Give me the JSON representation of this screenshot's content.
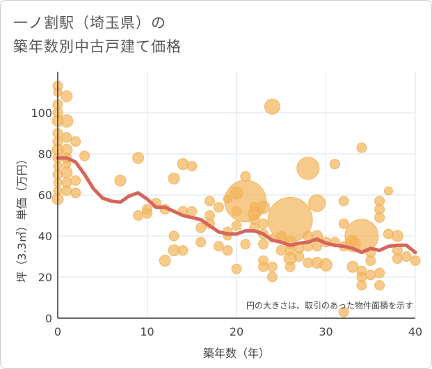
{
  "title_line1": "一ノ割駅（埼玉県）の",
  "title_line2": "築年数別中古戸建て価格",
  "chart_data": {
    "type": "scatter",
    "title": "一ノ割駅（埼玉県）の築年数別中古戸建て価格",
    "xlabel": "築年数（年）",
    "ylabel": "坪（3.3㎡）単価（万円）",
    "xlim": [
      0,
      40
    ],
    "ylim": [
      0,
      120
    ],
    "xticks": [
      0,
      10,
      20,
      30,
      40
    ],
    "yticks": [
      0,
      20,
      40,
      60,
      80,
      100
    ],
    "grid": true,
    "annotation": "円の大きさは、取引のあった物件面積を示す",
    "colors": {
      "bubble": "#f2b35a",
      "line": "#d4675a",
      "grid": "#d7e3ee",
      "axis": "#333333"
    },
    "points": [
      [
        0,
        113,
        7
      ],
      [
        0,
        110,
        6
      ],
      [
        0,
        104,
        7
      ],
      [
        0,
        100,
        7
      ],
      [
        0,
        96,
        8
      ],
      [
        0,
        90,
        7
      ],
      [
        0,
        86,
        7
      ],
      [
        0,
        82,
        8
      ],
      [
        0,
        78,
        7
      ],
      [
        0,
        74,
        6
      ],
      [
        0,
        70,
        7
      ],
      [
        0,
        66,
        6
      ],
      [
        0,
        62,
        6
      ],
      [
        0,
        58,
        8
      ],
      [
        1,
        108,
        8
      ],
      [
        1,
        96,
        9
      ],
      [
        1,
        88,
        7
      ],
      [
        1,
        82,
        8
      ],
      [
        1,
        78,
        7
      ],
      [
        1,
        75,
        6
      ],
      [
        1,
        71,
        8
      ],
      [
        1,
        66,
        7
      ],
      [
        1,
        62,
        7
      ],
      [
        2,
        86,
        7
      ],
      [
        2,
        67,
        7
      ],
      [
        2,
        61,
        7
      ],
      [
        3,
        79,
        7
      ],
      [
        7,
        67,
        8
      ],
      [
        9,
        78,
        8
      ],
      [
        9,
        50,
        7
      ],
      [
        10,
        53,
        7
      ],
      [
        10,
        51,
        7
      ],
      [
        11,
        56,
        7
      ],
      [
        12,
        53,
        7
      ],
      [
        12,
        28,
        8
      ],
      [
        13,
        68,
        8
      ],
      [
        13,
        40,
        7
      ],
      [
        13,
        33,
        8
      ],
      [
        14,
        75,
        8
      ],
      [
        14,
        52,
        7
      ],
      [
        14,
        33,
        7
      ],
      [
        15,
        74,
        7
      ],
      [
        15,
        52,
        7
      ],
      [
        16,
        44,
        7
      ],
      [
        16,
        37,
        7
      ],
      [
        17,
        57,
        7
      ],
      [
        17,
        50,
        7
      ],
      [
        17,
        46,
        7
      ],
      [
        18,
        54,
        7
      ],
      [
        18,
        35,
        7
      ],
      [
        19,
        42,
        7
      ],
      [
        19,
        33,
        7
      ],
      [
        19,
        40,
        6
      ],
      [
        19,
        58,
        6
      ],
      [
        20,
        61,
        9
      ],
      [
        20,
        24,
        7
      ],
      [
        20,
        52,
        7
      ],
      [
        20,
        45,
        7
      ],
      [
        21,
        69,
        7
      ],
      [
        21,
        57,
        30
      ],
      [
        21,
        36,
        7
      ],
      [
        22,
        51,
        9
      ],
      [
        22,
        48,
        7
      ],
      [
        22,
        44,
        7
      ],
      [
        22,
        54,
        7
      ],
      [
        23,
        54,
        9
      ],
      [
        23,
        46,
        7
      ],
      [
        23,
        41,
        7
      ],
      [
        23,
        36,
        7
      ],
      [
        23,
        28,
        7
      ],
      [
        23,
        25,
        7
      ],
      [
        24,
        103,
        11
      ],
      [
        24,
        25,
        7
      ],
      [
        24,
        20,
        7
      ],
      [
        24,
        39,
        6
      ],
      [
        25,
        33,
        7
      ],
      [
        25,
        40,
        7
      ],
      [
        26,
        48,
        32
      ],
      [
        26,
        37,
        9
      ],
      [
        26,
        33,
        7
      ],
      [
        26,
        29,
        9
      ],
      [
        26,
        25,
        7
      ],
      [
        27,
        34,
        7
      ],
      [
        27,
        30,
        7
      ],
      [
        28,
        73,
        16
      ],
      [
        28,
        40,
        7
      ],
      [
        28,
        35,
        7
      ],
      [
        28,
        27,
        7
      ],
      [
        29,
        56,
        12
      ],
      [
        29,
        40,
        8
      ],
      [
        29,
        35,
        7
      ],
      [
        29,
        27,
        8
      ],
      [
        30,
        37,
        7
      ],
      [
        30,
        26,
        9
      ],
      [
        31,
        75,
        7
      ],
      [
        31,
        37,
        7
      ],
      [
        32,
        57,
        7
      ],
      [
        32,
        46,
        7
      ],
      [
        32,
        35,
        7
      ],
      [
        32,
        3,
        7
      ],
      [
        33,
        38,
        7
      ],
      [
        33,
        36,
        11
      ],
      [
        33,
        25,
        8
      ],
      [
        34,
        83,
        7
      ],
      [
        34,
        40,
        24
      ],
      [
        34,
        23,
        7
      ],
      [
        34,
        20,
        7
      ],
      [
        34,
        16,
        7
      ],
      [
        35,
        32,
        7
      ],
      [
        35,
        28,
        7
      ],
      [
        35,
        21,
        7
      ],
      [
        36,
        57,
        7
      ],
      [
        36,
        53,
        7
      ],
      [
        36,
        49,
        7
      ],
      [
        36,
        22,
        7
      ],
      [
        36,
        16,
        7
      ],
      [
        37,
        62,
        6
      ],
      [
        37,
        41,
        7
      ],
      [
        38,
        40,
        8
      ],
      [
        38,
        33,
        7
      ],
      [
        38,
        29,
        7
      ],
      [
        39,
        30,
        7
      ],
      [
        40,
        28,
        7
      ]
    ],
    "trend": {
      "x": [
        0,
        1,
        2,
        3,
        4,
        5,
        6,
        7,
        8,
        9,
        10,
        11,
        12,
        13,
        14,
        15,
        16,
        17,
        18,
        19,
        20,
        21,
        22,
        23,
        24,
        25,
        26,
        27,
        28,
        29,
        30,
        31,
        32,
        33,
        34,
        35,
        36,
        37,
        38,
        39,
        40
      ],
      "y": [
        78,
        78,
        76,
        70,
        63,
        58.5,
        57,
        56.5,
        59.5,
        61,
        58,
        54,
        54,
        52,
        50,
        49,
        48,
        45,
        42,
        41,
        41,
        42.5,
        42.5,
        41,
        38,
        37,
        35.5,
        36.5,
        37,
        38.5,
        36.5,
        35.5,
        35,
        34,
        32,
        34,
        33,
        35,
        35.5,
        35.5,
        32
      ]
    }
  }
}
